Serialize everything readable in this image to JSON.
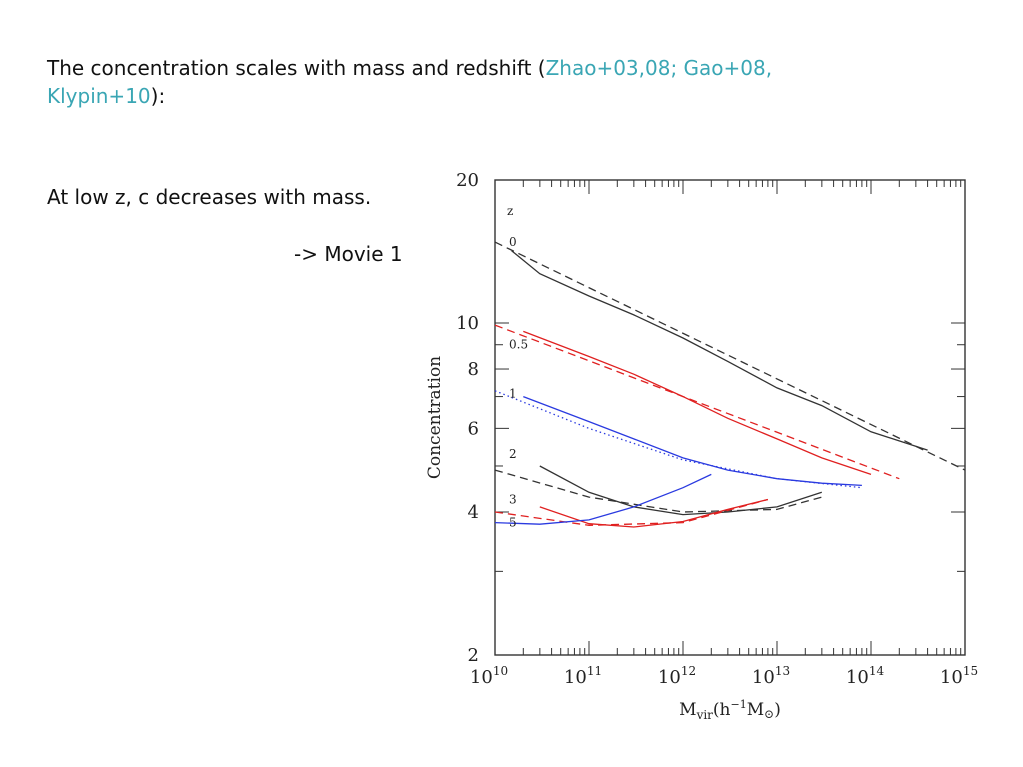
{
  "slide": {
    "title_prefix": "The concentration  scales with mass and redshift (",
    "citation_1": "Zhao+03,08; Gao+08,",
    "citation_2": "Klypin+10",
    "title_suffix": "):",
    "note": "At low z, c decreases with mass.",
    "movie": "-> Movie 1"
  },
  "colors": {
    "citation": "#3aa6b4",
    "black": "#333333",
    "red": "#e02020",
    "blue": "#2a3ae0"
  },
  "chart_data": {
    "type": "line",
    "xlabel_main": "M",
    "xlabel_sub": "vir",
    "xlabel_unit": "(h",
    "xlabel_exp": "−1",
    "xlabel_tail": "M",
    "xlabel_sun": "⊙",
    "xlabel_close": ")",
    "ylabel": "Concentration",
    "x_scale": "log",
    "y_scale": "log",
    "xlim": [
      10000000000.0,
      1000000000000000.0
    ],
    "ylim": [
      2,
      20
    ],
    "x_ticks": [
      {
        "value": 10000000000.0,
        "base": "10",
        "exp": "10"
      },
      {
        "value": 100000000000.0,
        "base": "10",
        "exp": "11"
      },
      {
        "value": 1000000000000.0,
        "base": "10",
        "exp": "12"
      },
      {
        "value": 10000000000000.0,
        "base": "10",
        "exp": "13"
      },
      {
        "value": 100000000000000.0,
        "base": "10",
        "exp": "14"
      },
      {
        "value": 1000000000000000.0,
        "base": "10",
        "exp": "15"
      }
    ],
    "y_ticks": [
      {
        "value": 2,
        "label": "2"
      },
      {
        "value": 4,
        "label": "4"
      },
      {
        "value": 6,
        "label": "6"
      },
      {
        "value": 8,
        "label": "8"
      },
      {
        "value": 10,
        "label": "10"
      },
      {
        "value": 20,
        "label": "20"
      }
    ],
    "legend_header": "z",
    "z_labels": [
      {
        "text": "0",
        "c": 14.8
      },
      {
        "text": "0.5",
        "c": 9.0
      },
      {
        "text": "1",
        "c": 7.1
      },
      {
        "text": "2",
        "c": 5.3
      },
      {
        "text": "3",
        "c": 4.25
      },
      {
        "text": "5",
        "c": 3.8
      }
    ],
    "series": [
      {
        "color": "black",
        "style": "solid",
        "x": [
          15000000000.0,
          30000000000.0,
          100000000000.0,
          300000000000.0,
          1000000000000.0,
          3000000000000.0,
          10000000000000.0,
          30000000000000.0,
          100000000000000.0,
          400000000000000.0
        ],
        "y": [
          14.2,
          12.7,
          11.4,
          10.4,
          9.3,
          8.3,
          7.3,
          6.7,
          5.9,
          5.4
        ]
      },
      {
        "color": "black",
        "style": "dashed",
        "x": [
          10000000000.0,
          1000000000000000.0
        ],
        "y": [
          14.8,
          4.9
        ]
      },
      {
        "color": "red",
        "style": "solid",
        "x": [
          20000000000.0,
          100000000000.0,
          300000000000.0,
          1000000000000.0,
          3000000000000.0,
          10000000000000.0,
          30000000000000.0,
          100000000000000.0
        ],
        "y": [
          9.6,
          8.5,
          7.8,
          7.0,
          6.3,
          5.7,
          5.2,
          4.8
        ]
      },
      {
        "color": "red",
        "style": "dashed",
        "x": [
          10000000000.0,
          200000000000000.0
        ],
        "y": [
          9.9,
          4.7
        ]
      },
      {
        "color": "blue",
        "style": "solid",
        "x": [
          20000000000.0,
          100000000000.0,
          300000000000.0,
          1000000000000.0,
          3000000000000.0,
          10000000000000.0,
          30000000000000.0,
          80000000000000.0
        ],
        "y": [
          7.0,
          6.2,
          5.7,
          5.2,
          4.9,
          4.7,
          4.6,
          4.55
        ]
      },
      {
        "color": "blue",
        "style": "dotted",
        "x": [
          10000000000.0,
          100000000000.0,
          1000000000000.0,
          10000000000000.0,
          80000000000000.0
        ],
        "y": [
          7.2,
          6.0,
          5.15,
          4.7,
          4.5
        ]
      },
      {
        "color": "black",
        "style": "solid",
        "x": [
          30000000000.0,
          100000000000.0,
          300000000000.0,
          1000000000000.0,
          3000000000000.0,
          10000000000000.0,
          30000000000000.0
        ],
        "y": [
          5.0,
          4.4,
          4.1,
          3.95,
          4.0,
          4.1,
          4.4
        ]
      },
      {
        "color": "black",
        "style": "dashed",
        "x": [
          10000000000.0,
          100000000000.0,
          1000000000000.0,
          10000000000000.0,
          30000000000000.0
        ],
        "y": [
          4.9,
          4.3,
          4.0,
          4.05,
          4.3
        ]
      },
      {
        "color": "red",
        "style": "solid",
        "x": [
          30000000000.0,
          100000000000.0,
          300000000000.0,
          1000000000000.0,
          3000000000000.0,
          8000000000000.0
        ],
        "y": [
          4.1,
          3.78,
          3.72,
          3.82,
          4.05,
          4.25
        ]
      },
      {
        "color": "red",
        "style": "dashed",
        "x": [
          10000000000.0,
          100000000000.0,
          1000000000000.0,
          8000000000000.0
        ],
        "y": [
          4.0,
          3.75,
          3.8,
          4.25
        ]
      },
      {
        "color": "blue",
        "style": "solid",
        "x": [
          10000000000.0,
          30000000000.0,
          100000000000.0,
          300000000000.0,
          1000000000000.0,
          2000000000000.0
        ],
        "y": [
          3.8,
          3.77,
          3.85,
          4.1,
          4.5,
          4.8
        ]
      }
    ]
  }
}
